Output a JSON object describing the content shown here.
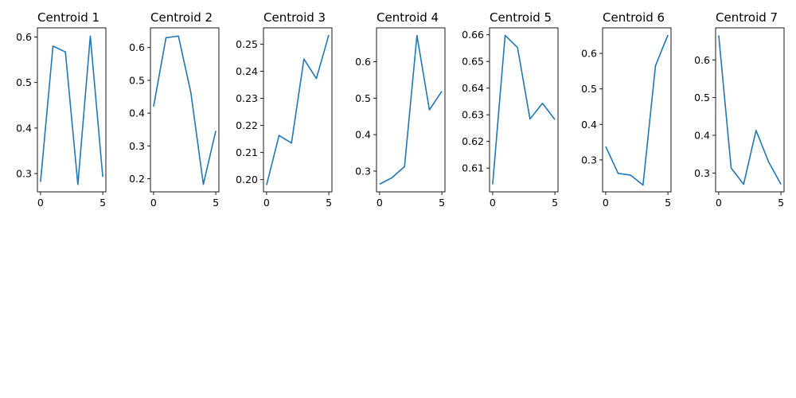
{
  "figure": {
    "background": "#ffffff",
    "line_color": "#1f77b4"
  },
  "chart_data": [
    {
      "type": "line",
      "title": "Centroid 1",
      "x": [
        0,
        1,
        2,
        3,
        4,
        5
      ],
      "values": [
        0.282,
        0.58,
        0.567,
        0.276,
        0.602,
        0.293
      ],
      "ylim": [
        0.26,
        0.62
      ],
      "yticks": [
        0.3,
        0.4,
        0.5,
        0.6
      ],
      "ytick_labels": [
        "0.3",
        "0.4",
        "0.5",
        "0.6"
      ],
      "xticks": [
        0,
        5
      ],
      "xtick_labels": [
        "0",
        "5"
      ],
      "xlabel": "",
      "ylabel": "",
      "grid": false
    },
    {
      "type": "line",
      "title": "Centroid 2",
      "x": [
        0,
        1,
        2,
        3,
        4,
        5
      ],
      "values": [
        0.42,
        0.63,
        0.635,
        0.462,
        0.183,
        0.346
      ],
      "ylim": [
        0.16,
        0.66
      ],
      "yticks": [
        0.2,
        0.3,
        0.4,
        0.5,
        0.6
      ],
      "ytick_labels": [
        "0.2",
        "0.3",
        "0.4",
        "0.5",
        "0.6"
      ],
      "xticks": [
        0,
        5
      ],
      "xtick_labels": [
        "0",
        "5"
      ],
      "xlabel": "",
      "ylabel": "",
      "grid": false
    },
    {
      "type": "line",
      "title": "Centroid 3",
      "x": [
        0,
        1,
        2,
        3,
        4,
        5
      ],
      "values": [
        0.198,
        0.2163,
        0.2135,
        0.2445,
        0.2373,
        0.2534
      ],
      "ylim": [
        0.1955,
        0.256
      ],
      "yticks": [
        0.2,
        0.21,
        0.22,
        0.23,
        0.24,
        0.25
      ],
      "ytick_labels": [
        "0.20",
        "0.21",
        "0.22",
        "0.23",
        "0.24",
        "0.25"
      ],
      "xticks": [
        0,
        5
      ],
      "xtick_labels": [
        "0",
        "5"
      ],
      "xlabel": "",
      "ylabel": "",
      "grid": false
    },
    {
      "type": "line",
      "title": "Centroid 4",
      "x": [
        0,
        1,
        2,
        3,
        4,
        5
      ],
      "values": [
        0.264,
        0.282,
        0.312,
        0.672,
        0.468,
        0.519
      ],
      "ylim": [
        0.243,
        0.693
      ],
      "yticks": [
        0.3,
        0.4,
        0.5,
        0.6
      ],
      "ytick_labels": [
        "0.3",
        "0.4",
        "0.5",
        "0.6"
      ],
      "xticks": [
        0,
        5
      ],
      "xtick_labels": [
        "0",
        "5"
      ],
      "xlabel": "",
      "ylabel": "",
      "grid": false
    },
    {
      "type": "line",
      "title": "Centroid 5",
      "x": [
        0,
        1,
        2,
        3,
        4,
        5
      ],
      "values": [
        0.6039,
        0.6598,
        0.6552,
        0.6284,
        0.6343,
        0.6282
      ],
      "ylim": [
        0.6011,
        0.6626
      ],
      "yticks": [
        0.61,
        0.62,
        0.63,
        0.64,
        0.65,
        0.66
      ],
      "ytick_labels": [
        "0.61",
        "0.62",
        "0.63",
        "0.64",
        "0.65",
        "0.66"
      ],
      "xticks": [
        0,
        5
      ],
      "xtick_labels": [
        "0",
        "5"
      ],
      "xlabel": "",
      "ylabel": "",
      "grid": false
    },
    {
      "type": "line",
      "title": "Centroid 6",
      "x": [
        0,
        1,
        2,
        3,
        4,
        5
      ],
      "values": [
        0.338,
        0.262,
        0.257,
        0.229,
        0.565,
        0.652
      ],
      "ylim": [
        0.21,
        0.672
      ],
      "yticks": [
        0.3,
        0.4,
        0.5,
        0.6
      ],
      "ytick_labels": [
        "0.3",
        "0.4",
        "0.5",
        "0.6"
      ],
      "xticks": [
        0,
        5
      ],
      "xtick_labels": [
        "0",
        "5"
      ],
      "xlabel": "",
      "ylabel": "",
      "grid": false
    },
    {
      "type": "line",
      "title": "Centroid 7",
      "x": [
        0,
        1,
        2,
        3,
        4,
        5
      ],
      "values": [
        0.665,
        0.313,
        0.27,
        0.413,
        0.33,
        0.27
      ],
      "ylim": [
        0.25,
        0.685
      ],
      "yticks": [
        0.3,
        0.4,
        0.5,
        0.6
      ],
      "ytick_labels": [
        "0.3",
        "0.4",
        "0.5",
        "0.6"
      ],
      "xticks": [
        0,
        5
      ],
      "xtick_labels": [
        "0",
        "5"
      ],
      "xlabel": "",
      "ylabel": "",
      "grid": false
    }
  ]
}
